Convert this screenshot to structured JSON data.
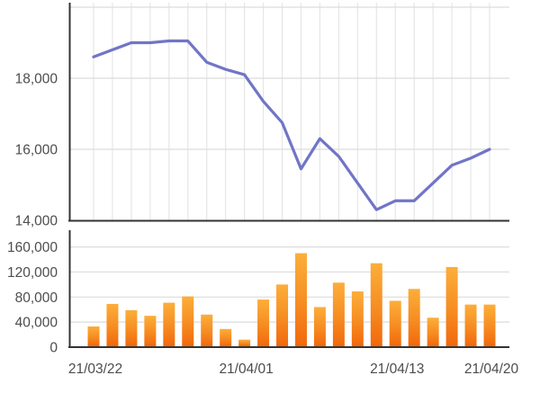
{
  "chart_data": [
    {
      "type": "line",
      "name": "price-series",
      "n_points": 22,
      "values": [
        18600,
        18800,
        19000,
        19000,
        19050,
        19050,
        18450,
        18250,
        18100,
        17350,
        16750,
        15450,
        16300,
        15800,
        15050,
        14300,
        14550,
        14550,
        15050,
        15550,
        15750,
        16000
      ],
      "ylim": [
        14000,
        20000
      ],
      "yticks": [
        {
          "value": 14000,
          "label": "14,000"
        },
        {
          "value": 16000,
          "label": "16,000"
        },
        {
          "value": 18000,
          "label": "18,000"
        },
        {
          "value": 20000,
          "label": ""
        }
      ],
      "grid": true,
      "line_color": "#7175c7"
    },
    {
      "type": "bar",
      "name": "volume-series",
      "n_points": 22,
      "values": [
        33000,
        69000,
        59000,
        50000,
        71000,
        81000,
        52000,
        29000,
        12000,
        76000,
        100000,
        150000,
        64000,
        103000,
        89000,
        134000,
        74000,
        93000,
        47000,
        128000,
        68000,
        68000
      ],
      "ylim": [
        0,
        180000
      ],
      "yticks": [
        {
          "value": 0,
          "label": "0"
        },
        {
          "value": 40000,
          "label": "40,000"
        },
        {
          "value": 80000,
          "label": "80,000"
        },
        {
          "value": 120000,
          "label": "120,000"
        },
        {
          "value": 160000,
          "label": "160,000"
        }
      ],
      "grid": true,
      "bar_gradient_top": "#fcae3a",
      "bar_gradient_mid": "#f68c22",
      "bar_gradient_bottom": "#f2680c"
    }
  ],
  "x_axis": {
    "labels": [
      {
        "label": "21/03/22",
        "index": 0
      },
      {
        "label": "21/04/01",
        "index": 8
      },
      {
        "label": "21/04/13",
        "index": 16
      },
      {
        "label": "21/04/20",
        "index": 21
      }
    ]
  },
  "colors": {
    "background": "#ffffff",
    "grid_vertical": "#e6e6e6",
    "grid_horizontal": "#dcdcdc",
    "axis": "#333333",
    "tick_label": "#4d4d4d",
    "line": "#7175c7"
  }
}
